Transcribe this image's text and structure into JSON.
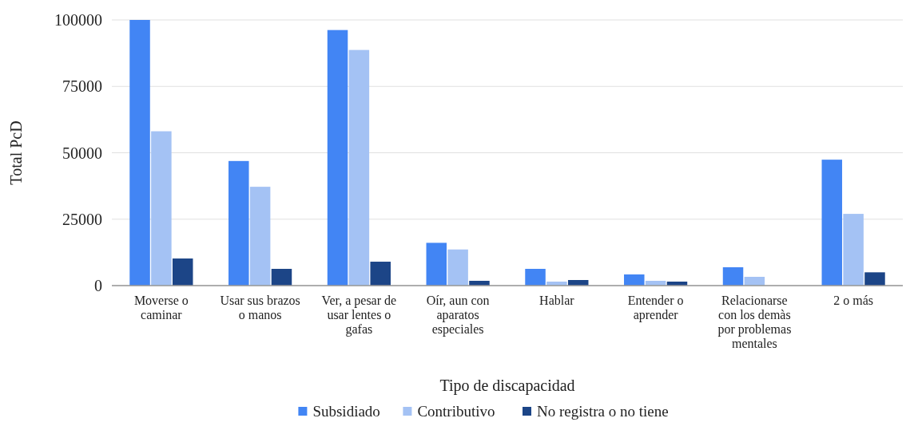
{
  "chart_data": {
    "type": "bar",
    "xlabel": "Tipo de discapacidad",
    "ylabel": "Total PcD",
    "categories": [
      "Moverse o caminar",
      "Usar sus brazos o manos",
      "Ver, a pesar de usar lentes o gafas",
      "Oír, aun con aparatos especiales",
      "Hablar",
      "Entender o aprender",
      "Relacionarse con los demàs por problemas mentales",
      "2 o más"
    ],
    "series": [
      {
        "name": "Subsidiado",
        "color": "#4285f4",
        "values": [
          100000,
          46900,
          96200,
          16100,
          6300,
          4200,
          6900,
          47400
        ]
      },
      {
        "name": "Contributivo",
        "color": "#a4c2f4",
        "values": [
          58100,
          37200,
          88700,
          13600,
          1500,
          1800,
          3300,
          27000
        ]
      },
      {
        "name": "No registra o no tiene",
        "color": "#1c4587",
        "values": [
          10200,
          6300,
          9000,
          1800,
          2100,
          1500,
          null,
          5000
        ]
      }
    ],
    "ylim": [
      0,
      100000
    ],
    "yticks": [
      0,
      25000,
      50000,
      75000,
      100000
    ],
    "grid": "y",
    "legend": "bottom"
  }
}
